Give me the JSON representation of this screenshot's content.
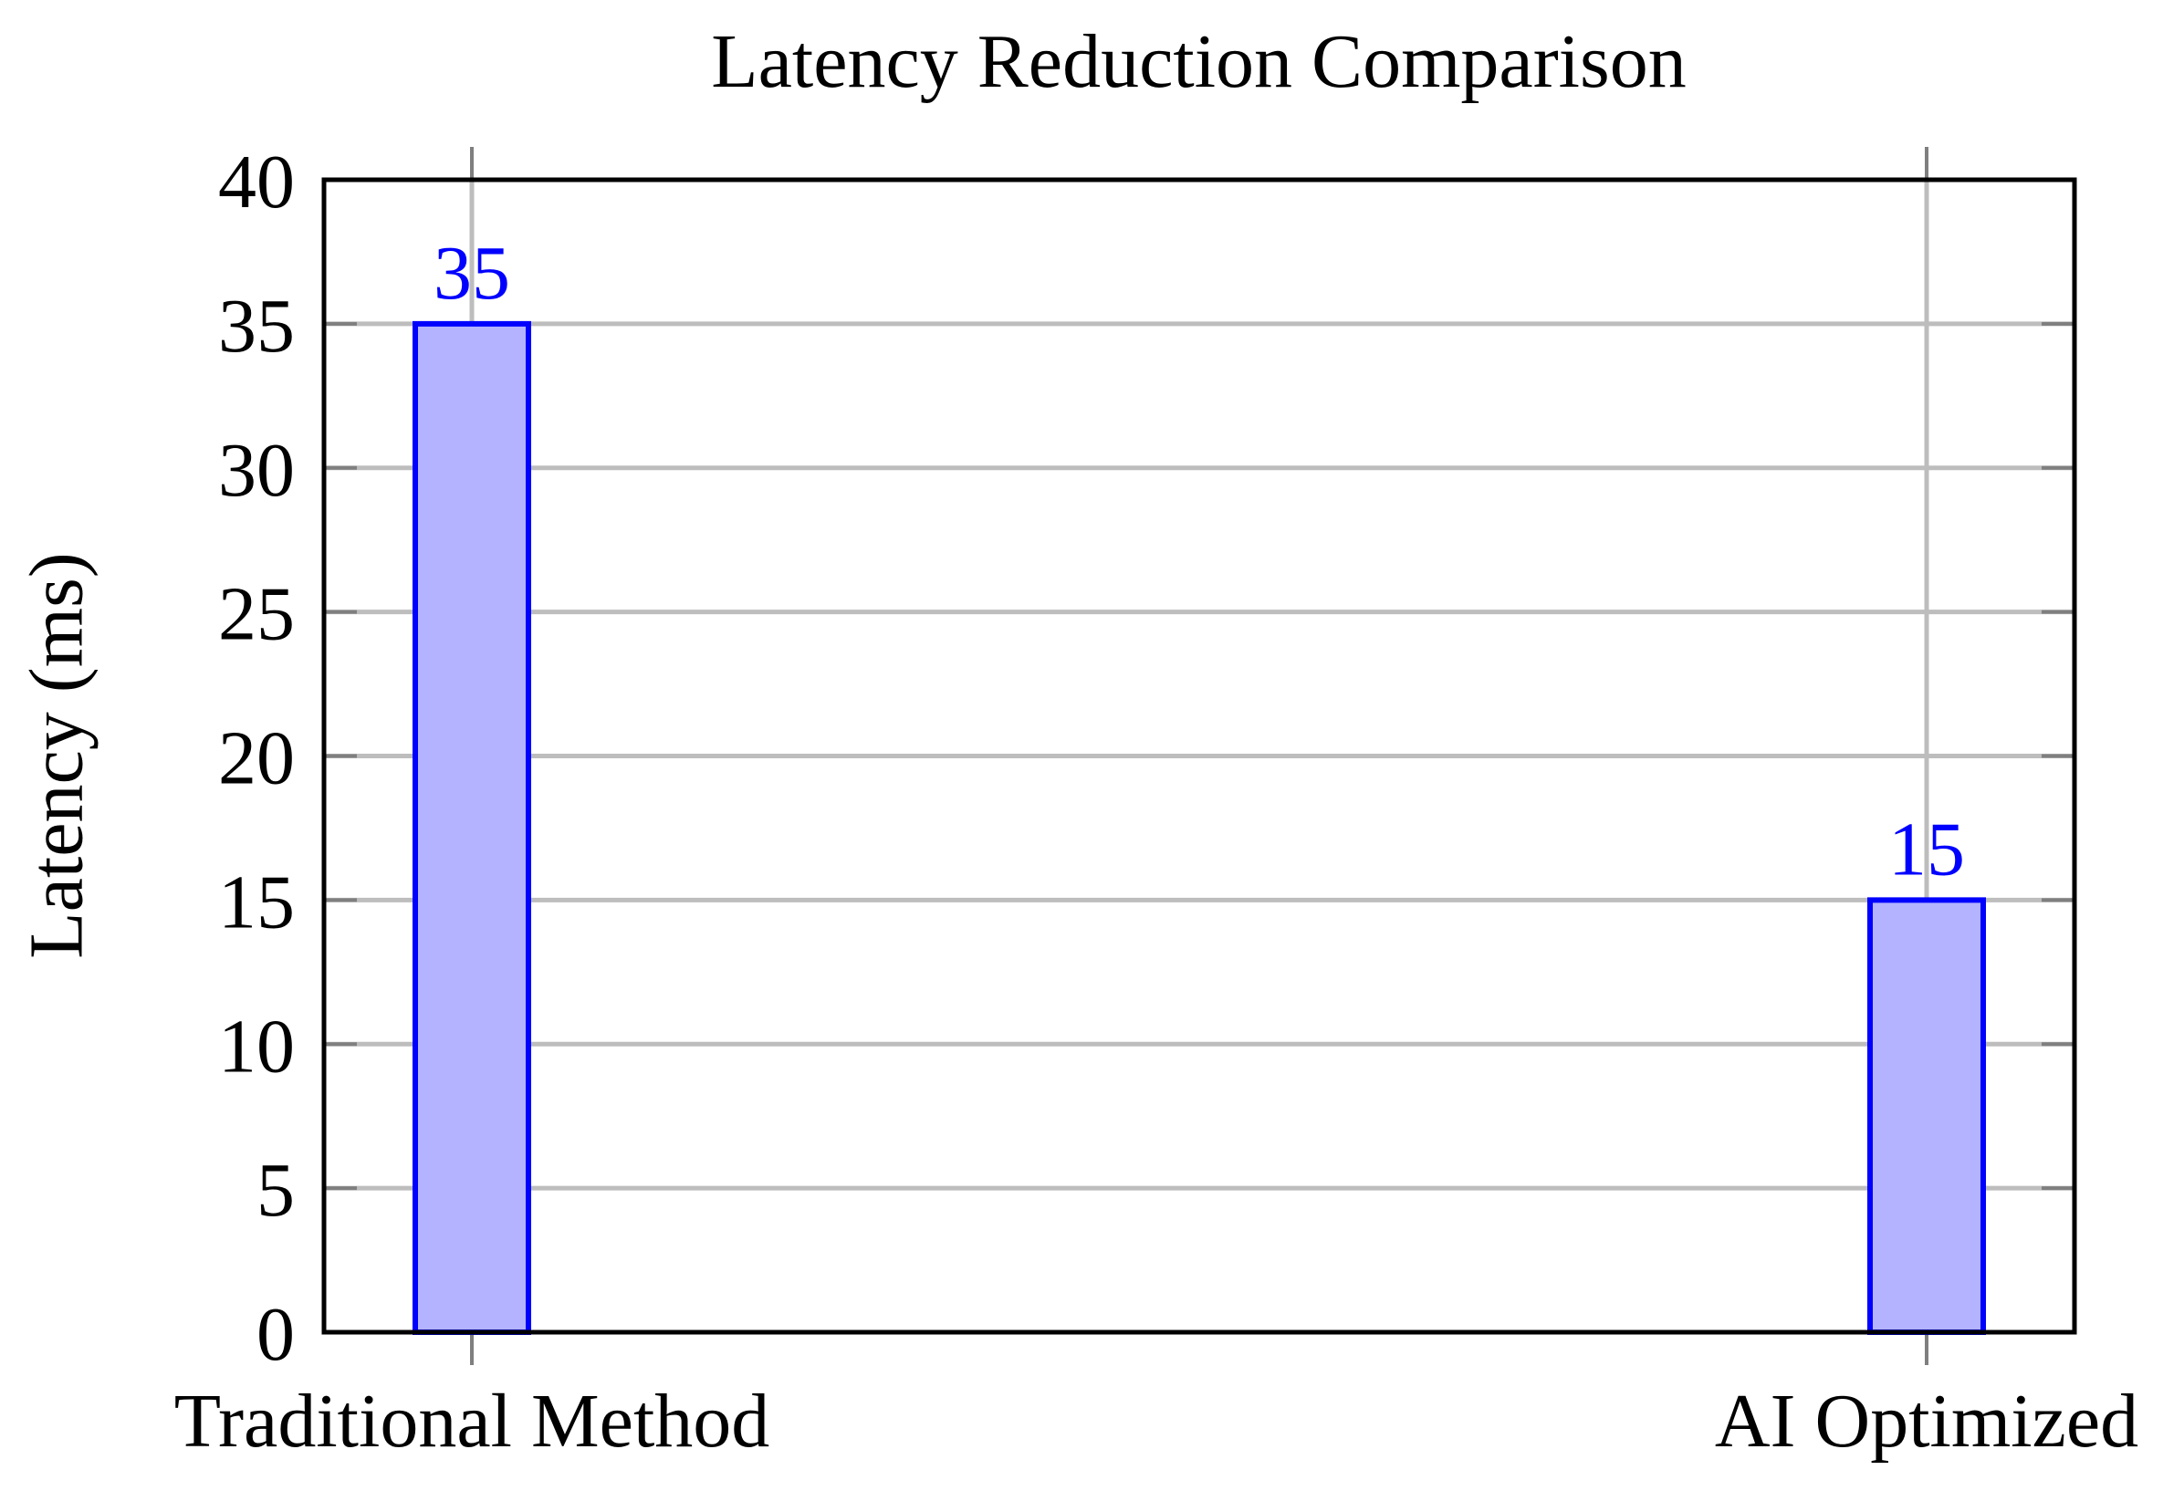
{
  "chart_data": {
    "type": "bar",
    "title": "Latency Reduction Comparison",
    "ylabel": "Latency (ms)",
    "xlabel": "",
    "categories": [
      "Traditional Method",
      "AI Optimized"
    ],
    "values": [
      35,
      15
    ],
    "value_labels": [
      "35",
      "15"
    ],
    "ylim": [
      0,
      40
    ],
    "ytick_interval": 5,
    "ytick_labels": [
      "0",
      "5",
      "10",
      "15",
      "20",
      "25",
      "30",
      "35",
      "40"
    ],
    "grid": "horizontal major gridlines at y ticks, vertical gridlines at each category",
    "legend_position": "none",
    "colors": {
      "bar_fill": "#b3b3ff",
      "bar_border": "#0000ff",
      "value_label": "#0000ff",
      "grid_line": "#bdbdbd",
      "tick_mark": "#7f7f7f",
      "axis_frame": "#000000",
      "text": "#000000",
      "background": "#ffffff"
    }
  }
}
